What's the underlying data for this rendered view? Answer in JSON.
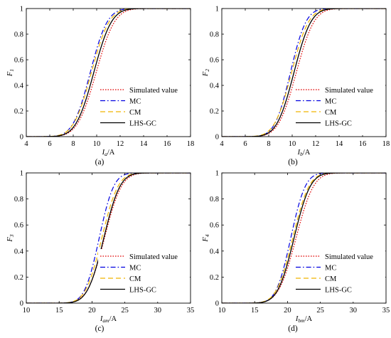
{
  "chart_data": [
    {
      "type": "line",
      "panel_label": "(a)",
      "xlabel": "I_a/A",
      "xlabel_main": "I",
      "xlabel_sub": "a",
      "xlabel_unit": "/A",
      "ylabel": "F1",
      "ylabel_main": "F",
      "ylabel_sub": "1",
      "xlim": [
        4,
        18
      ],
      "ylim": [
        0,
        1
      ],
      "xticks": [
        "4",
        "6",
        "8",
        "10",
        "12",
        "14",
        "16",
        "18"
      ],
      "yticks": [
        "0",
        "0.2",
        "0.4",
        "0.6",
        "0.8",
        "1"
      ],
      "legend_position": "lower-right",
      "series": [
        {
          "name": "Simulated value",
          "color": "#e00000",
          "dash": "dotted",
          "mean": 9.95,
          "sd": 1.25
        },
        {
          "name": "MC",
          "color": "#0000e0",
          "dash": "dashdot",
          "mean": 9.45,
          "sd": 1.15
        },
        {
          "name": "CM",
          "color": "#f0b400",
          "dash": "dashed",
          "mean": 9.55,
          "sd": 1.2
        },
        {
          "name": "LHS-GC",
          "color": "#000000",
          "dash": "solid",
          "mean": 9.75,
          "sd": 1.2
        }
      ]
    },
    {
      "type": "line",
      "panel_label": "(b)",
      "xlabel": "I_b/A",
      "xlabel_main": "I",
      "xlabel_sub": "b",
      "xlabel_unit": "/A",
      "ylabel": "F2",
      "ylabel_main": "F",
      "ylabel_sub": "2",
      "xlim": [
        4,
        18
      ],
      "ylim": [
        0,
        1
      ],
      "xticks": [
        "4",
        "6",
        "8",
        "10",
        "12",
        "14",
        "16",
        "18"
      ],
      "yticks": [
        "0",
        "0.2",
        "0.4",
        "0.6",
        "0.8",
        "1"
      ],
      "legend_position": "lower-right",
      "series": [
        {
          "name": "Simulated value",
          "color": "#e00000",
          "dash": "dotted",
          "mean": 10.35,
          "sd": 1.2
        },
        {
          "name": "MC",
          "color": "#0000e0",
          "dash": "dashdot",
          "mean": 9.85,
          "sd": 1.05
        },
        {
          "name": "CM",
          "color": "#f0b400",
          "dash": "dashed",
          "mean": 9.95,
          "sd": 1.15
        },
        {
          "name": "LHS-GC",
          "color": "#000000",
          "dash": "solid",
          "mean": 10.15,
          "sd": 1.15
        }
      ]
    },
    {
      "type": "line",
      "panel_label": "(c)",
      "xlabel": "I_am/A",
      "xlabel_main": "I",
      "xlabel_sub": "am",
      "xlabel_unit": "/A",
      "ylabel": "F3",
      "ylabel_main": "F",
      "ylabel_sub": "3",
      "xlim": [
        10,
        35
      ],
      "ylim": [
        0,
        1
      ],
      "xticks": [
        "10",
        "15",
        "20",
        "25",
        "30",
        "35"
      ],
      "yticks": [
        "0",
        "0.2",
        "0.4",
        "0.6",
        "0.8",
        "1"
      ],
      "legend_position": "lower-right",
      "series": [
        {
          "name": "Simulated value",
          "color": "#e00000",
          "dash": "dotted",
          "mean": 21.9,
          "sd": 2.05
        },
        {
          "name": "MC",
          "color": "#0000e0",
          "dash": "dashdot",
          "mean": 21.1,
          "sd": 1.75
        },
        {
          "name": "CM",
          "color": "#f0b400",
          "dash": "dashed",
          "mean": 21.5,
          "sd": 1.95
        },
        {
          "name": "LHS-GC",
          "color": "#000000",
          "dash": "solid",
          "mean": 21.8,
          "sd": 1.95
        }
      ]
    },
    {
      "type": "line",
      "panel_label": "(d)",
      "xlabel": "I_bm/A",
      "xlabel_main": "I",
      "xlabel_sub": "bm",
      "xlabel_unit": "/A",
      "ylabel": "F4",
      "ylabel_main": "F",
      "ylabel_sub": "4",
      "xlim": [
        10,
        35
      ],
      "ylim": [
        0,
        1
      ],
      "xticks": [
        "10",
        "15",
        "20",
        "25",
        "30",
        "35"
      ],
      "yticks": [
        "0",
        "0.2",
        "0.4",
        "0.6",
        "0.8",
        "1"
      ],
      "legend_position": "lower-right",
      "series": [
        {
          "name": "Simulated value",
          "color": "#e00000",
          "dash": "dotted",
          "mean": 21.3,
          "sd": 2.1
        },
        {
          "name": "MC",
          "color": "#0000e0",
          "dash": "dashdot",
          "mean": 20.5,
          "sd": 1.75
        },
        {
          "name": "CM",
          "color": "#f0b400",
          "dash": "dashed",
          "mean": 20.8,
          "sd": 1.95
        },
        {
          "name": "LHS-GC",
          "color": "#000000",
          "dash": "solid",
          "mean": 21.0,
          "sd": 1.95
        }
      ]
    }
  ]
}
